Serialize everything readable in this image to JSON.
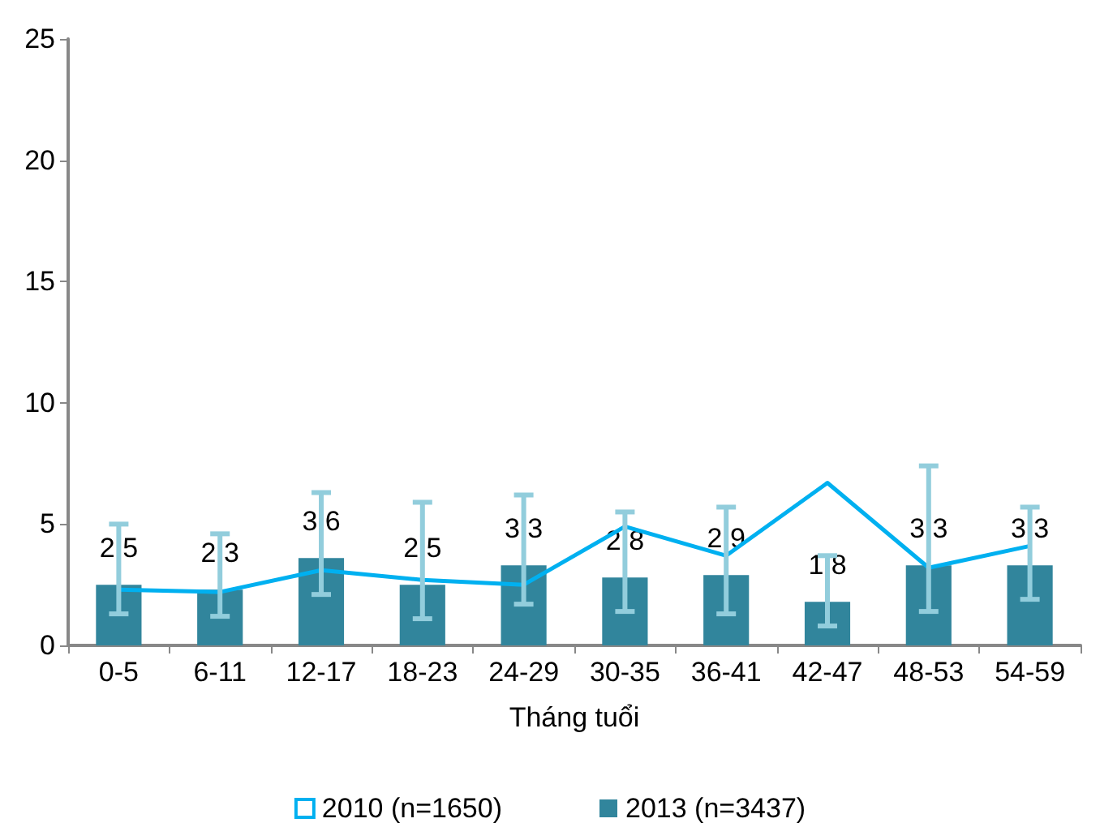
{
  "chart_data": {
    "type": "bar",
    "xlabel": "Tháng tuổi",
    "categories": [
      "0-5",
      "6-11",
      "12-17",
      "18-23",
      "24-29",
      "30-35",
      "36-41",
      "42-47",
      "48-53",
      "54-59"
    ],
    "series": [
      {
        "name": "2010 (n=1650)",
        "type": "line",
        "color": "#00b0f0",
        "marker": "none",
        "line_style": "solid",
        "values": [
          2.3,
          2.2,
          3.1,
          2.7,
          2.5,
          4.9,
          3.7,
          6.7,
          3.2,
          4.1
        ]
      },
      {
        "name": "2013 (n=3437)",
        "color": "#31859c",
        "values": [
          2.5,
          2.3,
          3.6,
          2.5,
          3.3,
          2.8,
          2.9,
          1.8,
          3.3,
          3.3
        ],
        "value_labels": [
          "2,5",
          "2,3",
          "3,6",
          "2,5",
          "3,3",
          "2,8",
          "2,9",
          "1,8",
          "3,3",
          "3,3"
        ],
        "errors": [
          [
            1.3,
            5.0
          ],
          [
            1.2,
            4.6
          ],
          [
            2.1,
            6.3
          ],
          [
            1.1,
            5.9
          ],
          [
            1.7,
            6.2
          ],
          [
            1.4,
            5.5
          ],
          [
            1.3,
            5.7
          ],
          [
            0.8,
            3.7
          ],
          [
            1.4,
            7.4
          ],
          [
            1.9,
            5.7
          ]
        ]
      }
    ],
    "ylim": [
      0,
      25
    ],
    "yticks": [
      0,
      5,
      10,
      15,
      20,
      25
    ],
    "grid": false,
    "legend": "bottom"
  }
}
